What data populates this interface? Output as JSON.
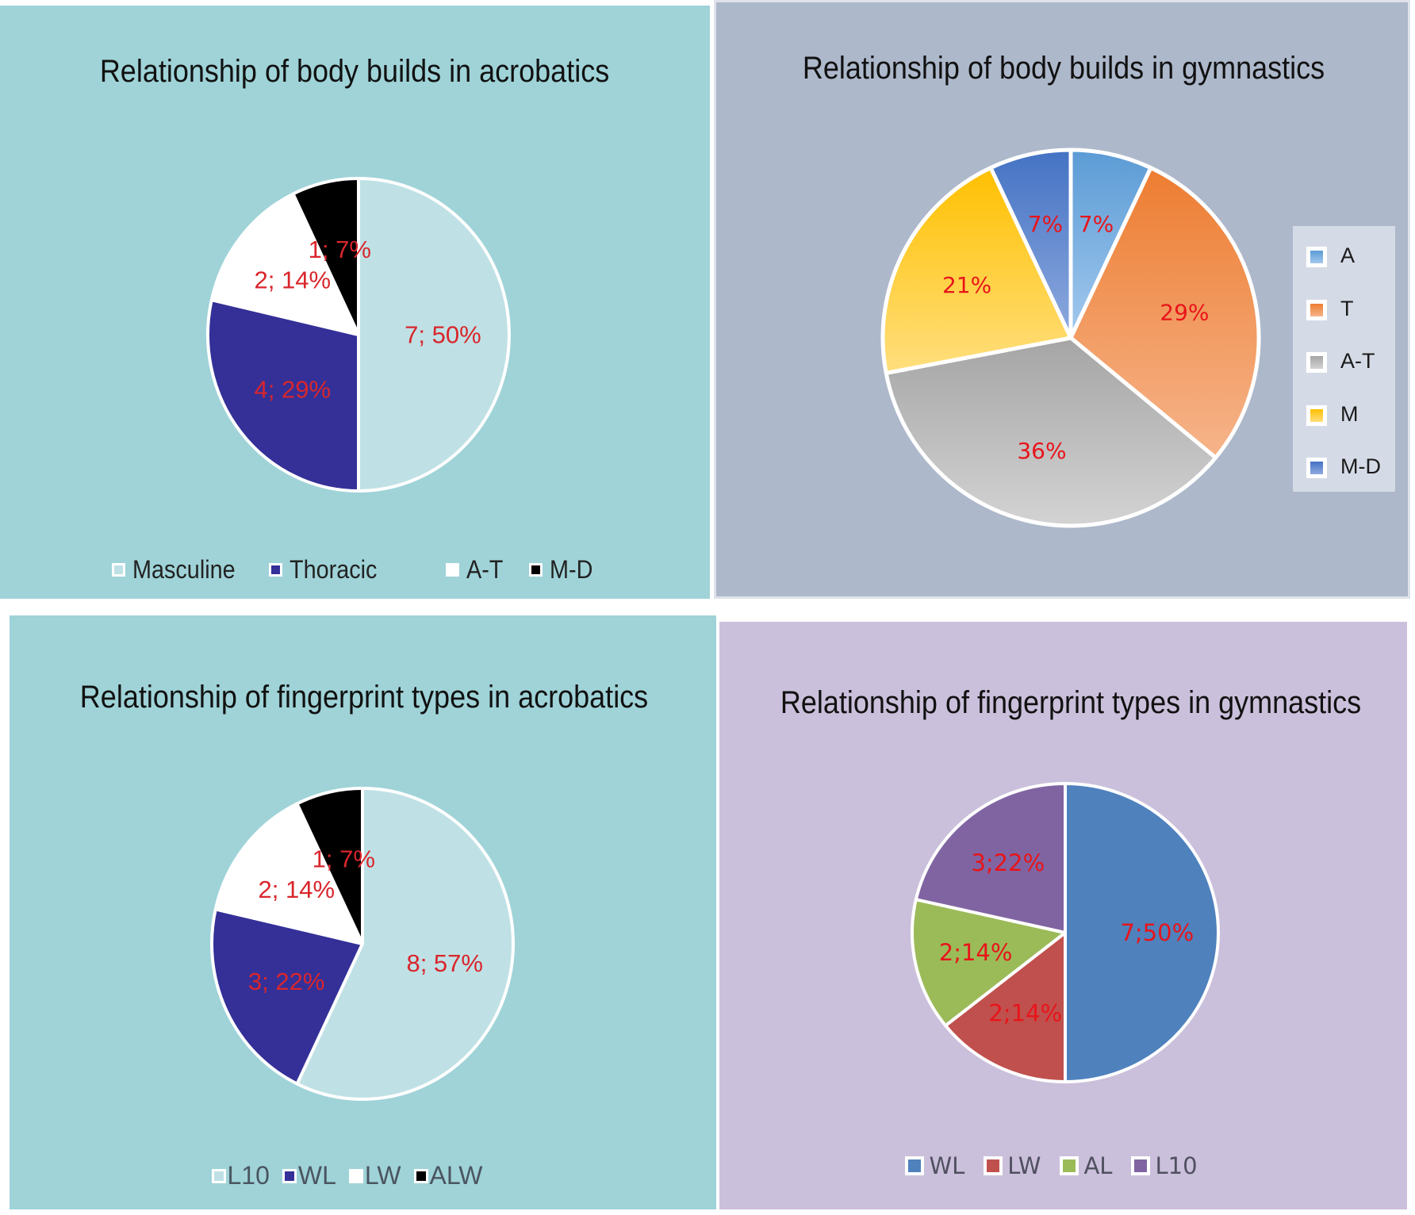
{
  "chart_data": [
    {
      "id": "tl",
      "type": "pie",
      "title": "Relationship of body builds in acrobatics",
      "label_format": "count_percent",
      "label_separator": "; ",
      "legend_position": "bottom",
      "slices": [
        {
          "name": "Masculine",
          "value": 7,
          "label": "7; 50%",
          "color": "#bfe1e5"
        },
        {
          "name": "Thoracic",
          "value": 4,
          "label": "4; 29%",
          "color": "#343098"
        },
        {
          "name": "A-T",
          "value": 2,
          "label": "2; 14%",
          "color": "#ffffff"
        },
        {
          "name": "M-D",
          "value": 1,
          "label": "1; 7%",
          "color": "#000000"
        }
      ],
      "label_color": "#d9262c",
      "background": "#9fd3d8"
    },
    {
      "id": "tr",
      "type": "pie",
      "title": "Relationship of body builds in gymnastics",
      "label_format": "percent",
      "legend_position": "right",
      "slices": [
        {
          "name": "A",
          "value": 7,
          "label": "7%",
          "color": "#5b9bd5",
          "color_light": "#a3c9ee"
        },
        {
          "name": "T",
          "value": 29,
          "label": "29%",
          "color": "#ed7d31",
          "color_light": "#f6b48a"
        },
        {
          "name": "A-T",
          "value": 36,
          "label": "36%",
          "color": "#a5a5a5",
          "color_light": "#d3d3d3"
        },
        {
          "name": "M",
          "value": 21,
          "label": "21%",
          "color": "#ffc000",
          "color_light": "#ffdf7e"
        },
        {
          "name": "M-D",
          "value": 7,
          "label": "7%",
          "color": "#4472c4",
          "color_light": "#8eaade"
        }
      ],
      "label_color": "#e8141a",
      "background": "#adb8cb"
    },
    {
      "id": "bl",
      "type": "pie",
      "title": "Relationship of fingerprint types in acrobatics",
      "label_format": "count_percent",
      "label_separator": "; ",
      "legend_position": "bottom",
      "slices": [
        {
          "name": "L10",
          "value": 8,
          "label": "8; 57%",
          "color": "#bfe1e5"
        },
        {
          "name": "WL",
          "value": 3,
          "label": "3; 22%",
          "color": "#343098"
        },
        {
          "name": "LW",
          "value": 2,
          "label": "2; 14%",
          "color": "#ffffff"
        },
        {
          "name": "ALW",
          "value": 1,
          "label": "1; 7%",
          "color": "#000000"
        }
      ],
      "label_color": "#d9262c",
      "background": "#9fd3d8"
    },
    {
      "id": "br",
      "type": "pie",
      "title": "Relationship of fingerprint types in gymnastics",
      "label_format": "count_percent",
      "label_separator": ";",
      "legend_position": "bottom",
      "slices": [
        {
          "name": "WL",
          "value": 7,
          "label": "7;50%",
          "color": "#4f81bd"
        },
        {
          "name": "LW",
          "value": 2,
          "label": "2;14%",
          "color": "#c0504d"
        },
        {
          "name": "AL",
          "value": 2,
          "label": "2;14%",
          "color": "#9bbb59"
        },
        {
          "name": "L10",
          "value": 3,
          "label": "3;22%",
          "color": "#8064a2"
        }
      ],
      "label_color": "#e8141a",
      "background": "#cbc0db"
    }
  ]
}
